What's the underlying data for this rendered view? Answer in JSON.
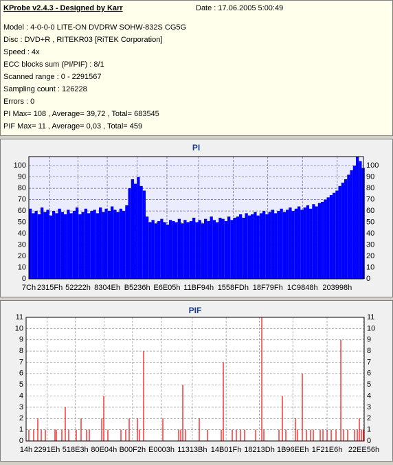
{
  "header": {
    "title": "KProbe v2.4.3 - Designed by Karr",
    "date": "Date : 17.06.2005 5:00:49",
    "lines": [
      "Model : 4-0-0-0 LITE-ON DVDRW SOHW-832S  CG5G",
      "Disc : DVD+R , RITEKR03 [RiTEK Corporation]",
      "Speed : 4x",
      "ECC blocks sum (PI/PIF) : 8/1",
      "Scanned range : 0 - 2291567",
      "Sampling count : 126228",
      "Errors : 0",
      "PI Max= 108 , Average= 39,72 , Total= 683545",
      "PIF Max= 11 , Average= 0,03 , Total= 459"
    ]
  },
  "chart_data": [
    {
      "type": "bar",
      "title": "PI",
      "color": "#0000ff",
      "grid": true,
      "xlim": [
        0,
        2291567
      ],
      "ylim": [
        0,
        108
      ],
      "xticks": [
        {
          "value": 124,
          "label": "7Ch"
        },
        {
          "value": 143711,
          "label": "2315Fh"
        },
        {
          "value": 336418,
          "label": "52222h"
        },
        {
          "value": 536654,
          "label": "8304Eh"
        },
        {
          "value": 741942,
          "label": "B5236h"
        },
        {
          "value": 945669,
          "label": "E6E05h"
        },
        {
          "value": 1163156,
          "label": "11BF94h"
        },
        {
          "value": 1399037,
          "label": "1558FDh"
        },
        {
          "value": 1636255,
          "label": "18F79Fh"
        },
        {
          "value": 1873992,
          "label": "1C9848h"
        },
        {
          "value": 2111896,
          "label": "203998h"
        }
      ],
      "yticks": [
        0,
        10,
        20,
        30,
        40,
        50,
        60,
        70,
        80,
        90,
        100
      ],
      "x": [
        0,
        20000,
        40000,
        60000,
        80000,
        100000,
        120000,
        140000,
        160000,
        180000,
        200000,
        220000,
        240000,
        260000,
        280000,
        300000,
        320000,
        340000,
        360000,
        380000,
        400000,
        420000,
        440000,
        460000,
        480000,
        500000,
        520000,
        540000,
        560000,
        580000,
        600000,
        620000,
        640000,
        660000,
        680000,
        700000,
        720000,
        740000,
        760000,
        780000,
        800000,
        820000,
        840000,
        860000,
        880000,
        900000,
        920000,
        940000,
        960000,
        980000,
        1000000,
        1020000,
        1040000,
        1060000,
        1080000,
        1100000,
        1120000,
        1140000,
        1160000,
        1180000,
        1200000,
        1220000,
        1240000,
        1260000,
        1280000,
        1300000,
        1320000,
        1340000,
        1360000,
        1380000,
        1400000,
        1420000,
        1440000,
        1460000,
        1480000,
        1500000,
        1520000,
        1540000,
        1560000,
        1580000,
        1600000,
        1620000,
        1640000,
        1660000,
        1680000,
        1700000,
        1720000,
        1740000,
        1760000,
        1780000,
        1800000,
        1820000,
        1840000,
        1860000,
        1880000,
        1900000,
        1920000,
        1940000,
        1960000,
        1980000,
        2000000,
        2020000,
        2040000,
        2060000,
        2080000,
        2100000,
        2120000,
        2140000,
        2160000,
        2180000,
        2200000,
        2220000,
        2240000,
        2260000,
        2280000
      ],
      "values": [
        62,
        58,
        60,
        57,
        63,
        59,
        61,
        56,
        60,
        58,
        62,
        59,
        57,
        61,
        58,
        60,
        63,
        57,
        59,
        62,
        58,
        60,
        61,
        58,
        63,
        59,
        62,
        60,
        64,
        61,
        59,
        62,
        60,
        65,
        80,
        88,
        84,
        90,
        82,
        78,
        55,
        50,
        52,
        49,
        51,
        53,
        50,
        48,
        52,
        51,
        50,
        53,
        49,
        52,
        50,
        51,
        54,
        50,
        52,
        49,
        53,
        51,
        55,
        52,
        50,
        54,
        53,
        51,
        55,
        52,
        54,
        55,
        57,
        54,
        58,
        56,
        57,
        59,
        56,
        58,
        60,
        57,
        59,
        61,
        58,
        60,
        62,
        59,
        61,
        63,
        60,
        62,
        64,
        61,
        63,
        65,
        62,
        66,
        64,
        67,
        68,
        70,
        72,
        74,
        76,
        78,
        82,
        85,
        88,
        92,
        96,
        100,
        108,
        104,
        98
      ]
    },
    {
      "type": "stem",
      "title": "PIF",
      "color": "#ff0000",
      "grid": true,
      "xlim": [
        0,
        2291567
      ],
      "ylim": [
        0,
        11
      ],
      "xticks": [
        {
          "value": 20,
          "label": "14h"
        },
        {
          "value": 141598,
          "label": "2291Eh"
        },
        {
          "value": 334051,
          "label": "518E3h"
        },
        {
          "value": 527876,
          "label": "80E04h"
        },
        {
          "value": 721138,
          "label": "B00F2h"
        },
        {
          "value": 917507,
          "label": "E0003h"
        },
        {
          "value": 1126715,
          "label": "11313Bh"
        },
        {
          "value": 1355807,
          "label": "14B01Fh"
        },
        {
          "value": 1581373,
          "label": "18213Dh"
        },
        {
          "value": 1808110,
          "label": "1B96EEh"
        },
        {
          "value": 2040294,
          "label": "1F21E6h"
        },
        {
          "value": 2289238,
          "label": "22EE56h"
        }
      ],
      "yticks": [
        0,
        1,
        2,
        3,
        4,
        5,
        6,
        7,
        8,
        9,
        10,
        11
      ],
      "x": [
        18600,
        51200,
        79200,
        102500,
        130400,
        195600,
        205000,
        242200,
        265500,
        288800,
        340000,
        372600,
        409900,
        428500,
        512400,
        526400,
        554300,
        642800,
        675400,
        698700,
        754600,
        768600,
        796500,
        926900,
        1034100,
        1048100,
        1062000,
        1080700,
        1173800,
        1229700,
        1322900,
        1336800,
        1397400,
        1425300,
        1453300,
        1481200,
        1555800,
        1597700,
        1611700,
        1714100,
        1737400,
        1760700,
        1825900,
        1839900,
        1872500,
        1900500,
        1928400,
        1947000,
        1993600,
        2012300,
        2040200,
        2068200,
        2100800,
        2133400,
        2152000,
        2179900,
        2226500,
        2245200,
        2259100,
        2273100,
        2287100
      ],
      "values": [
        1,
        1,
        2,
        1,
        1,
        1,
        1,
        1,
        3,
        1,
        1,
        2,
        1,
        1,
        2,
        4,
        1,
        1,
        1,
        2,
        2,
        1,
        8,
        2,
        1,
        1,
        5,
        1,
        2,
        1,
        1,
        7,
        1,
        1,
        1,
        1,
        1,
        11,
        1,
        1,
        4,
        1,
        2,
        1,
        6,
        1,
        1,
        1,
        1,
        1,
        1,
        1,
        1,
        9,
        1,
        1,
        1,
        1,
        2,
        1,
        1
      ]
    }
  ]
}
